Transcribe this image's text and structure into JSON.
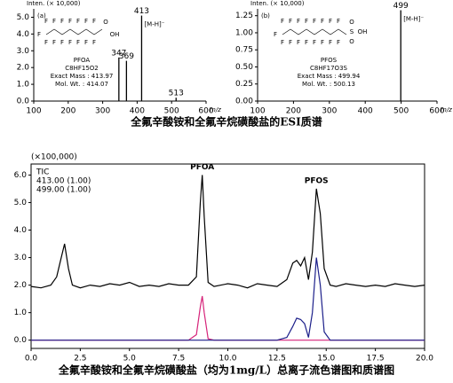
{
  "chart_data": [
    {
      "type": "stem",
      "label": "(a)",
      "ylabel": "Inten. (× 10,000)",
      "xlabel": "m/z",
      "x": [
        347,
        369,
        413,
        513
      ],
      "values": [
        2.6,
        2.4,
        5.1,
        0.2
      ],
      "color": "#000000",
      "label_color": "#2b3a9a",
      "annotation": "[M-H]⁻",
      "compound": "PFOA",
      "formula": "C8HF15O2",
      "exact_mass": "Exact Mass : 413.97",
      "mol_wt": "Mol. Wt. : 414.07",
      "structure": [
        "F",
        "F",
        "F",
        "F",
        "F",
        "F",
        "F",
        "F",
        "F",
        "F",
        "F",
        "F",
        "F",
        "F",
        "F",
        "O",
        "OH"
      ],
      "xlim": [
        100,
        600
      ],
      "xticks": [
        100,
        200,
        300,
        400,
        500,
        600
      ],
      "ylim": [
        0,
        5.5
      ],
      "yticks": [
        {
          "value": 0,
          "label": "0.0"
        },
        {
          "value": 1,
          "label": "1.0"
        },
        {
          "value": 2,
          "label": "2.0"
        },
        {
          "value": 3,
          "label": "3.0"
        },
        {
          "value": 4,
          "label": "4.0"
        },
        {
          "value": 5,
          "label": "5.0"
        }
      ]
    },
    {
      "type": "stem",
      "label": "(b)",
      "ylabel": "Inten. (× 10,000)",
      "xlabel": "m/z",
      "x": [
        499
      ],
      "values": [
        1.33
      ],
      "color": "#000000",
      "label_color": "#2b3a9a",
      "annotation": "[M-H]⁻",
      "compound": "PFOS",
      "formula": "C8HF17O3S",
      "exact_mass": "Exact Mass : 499.94",
      "mol_wt": "Mol. Wt. : 500.13",
      "structure": [
        "F",
        "F",
        "F",
        "F",
        "F",
        "F",
        "F",
        "F",
        "F",
        "F",
        "F",
        "F",
        "F",
        "F",
        "F",
        "F",
        "F",
        "S",
        "O",
        "O",
        "OH"
      ],
      "xlim": [
        100,
        600
      ],
      "xticks": [
        100,
        200,
        300,
        400,
        500,
        600
      ],
      "ylim": [
        0,
        1.35
      ],
      "yticks": [
        {
          "value": 0,
          "label": "0.00"
        },
        {
          "value": 0.25,
          "label": "0.25"
        },
        {
          "value": 0.5,
          "label": "0.50"
        },
        {
          "value": 0.75,
          "label": "0.75"
        },
        {
          "value": 1,
          "label": "1.00"
        },
        {
          "value": 1.25,
          "label": "1.25"
        }
      ]
    },
    {
      "type": "line",
      "ylabel": "(×100,000)",
      "x": [
        0,
        0.5,
        1,
        1.3,
        1.5,
        1.7,
        1.9,
        2.1,
        2.5,
        3,
        3.5,
        4,
        4.5,
        5,
        5.5,
        6,
        6.5,
        7,
        7.5,
        8,
        8.4,
        8.6,
        8.7,
        8.8,
        9.0,
        9.3,
        10,
        10.5,
        11,
        11.5,
        12,
        12.5,
        13,
        13.3,
        13.5,
        13.7,
        13.9,
        14.1,
        14.3,
        14.5,
        14.7,
        14.9,
        15.2,
        15.5,
        16,
        16.5,
        17,
        17.5,
        18,
        18.5,
        19,
        19.5,
        20
      ],
      "series": [
        {
          "name": "TIC",
          "color": "#000000",
          "values": [
            1.95,
            1.9,
            2.0,
            2.3,
            2.9,
            3.5,
            2.6,
            2.0,
            1.9,
            2.0,
            1.95,
            2.05,
            2.0,
            2.1,
            1.95,
            2.0,
            1.95,
            2.05,
            2.0,
            2.0,
            2.3,
            5.0,
            6.0,
            4.5,
            2.1,
            1.95,
            2.05,
            2.0,
            1.9,
            2.05,
            2.0,
            1.95,
            2.2,
            2.8,
            2.9,
            2.7,
            3.0,
            2.2,
            3.2,
            5.5,
            4.6,
            2.6,
            2.0,
            1.95,
            2.05,
            2.0,
            1.95,
            2.0,
            1.95,
            2.05,
            2.0,
            1.95,
            2.0
          ]
        },
        {
          "name": "413.00 (1.00)",
          "color": "#d6247a",
          "values": [
            0,
            0,
            0,
            0,
            0,
            0,
            0,
            0,
            0,
            0,
            0,
            0,
            0,
            0,
            0,
            0,
            0,
            0,
            0,
            0,
            0.2,
            1.2,
            1.6,
            1.0,
            0.05,
            0,
            0,
            0,
            0,
            0,
            0,
            0,
            0,
            0,
            0,
            0,
            0,
            0,
            0,
            0,
            0,
            0,
            0,
            0,
            0,
            0,
            0,
            0,
            0,
            0,
            0,
            0,
            0
          ]
        },
        {
          "name": "499.00 (1.00)",
          "color": "#1c1f8a",
          "values": [
            0,
            0,
            0,
            0,
            0,
            0,
            0,
            0,
            0,
            0,
            0,
            0,
            0,
            0,
            0,
            0,
            0,
            0,
            0,
            0,
            0,
            0,
            0,
            0,
            0,
            0,
            0,
            0,
            0,
            0,
            0,
            0,
            0.1,
            0.5,
            0.8,
            0.75,
            0.6,
            0.1,
            1.0,
            3.0,
            2.0,
            0.3,
            0,
            0,
            0,
            0,
            0,
            0,
            0,
            0,
            0,
            0,
            0
          ]
        }
      ],
      "annotations": [
        "PFOA",
        "PFOS"
      ],
      "xlim": [
        0,
        20
      ],
      "xticks": [
        {
          "value": 0,
          "label": "0.0"
        },
        {
          "value": 2.5,
          "label": "2.5"
        },
        {
          "value": 5,
          "label": "5.0"
        },
        {
          "value": 7.5,
          "label": "7.5"
        },
        {
          "value": 10,
          "label": "10.0"
        },
        {
          "value": 12.5,
          "label": "12.5"
        },
        {
          "value": 15,
          "label": "15.0"
        },
        {
          "value": 17.5,
          "label": "17.5"
        },
        {
          "value": 20,
          "label": "20.0"
        }
      ],
      "ylim": [
        -0.3,
        6.4
      ],
      "yticks": [
        {
          "value": 0,
          "label": "0.0"
        },
        {
          "value": 1,
          "label": "1.0"
        },
        {
          "value": 2,
          "label": "2.0"
        },
        {
          "value": 3,
          "label": "3.0"
        },
        {
          "value": 4,
          "label": "4.0"
        },
        {
          "value": 5,
          "label": "5.0"
        },
        {
          "value": 6,
          "label": "6.0"
        }
      ]
    }
  ],
  "captions": [
    "全氟辛酸铵和全氟辛烷磺酸盐的ESI质谱",
    "全氟辛酸铵和全氟辛烷磺酸盐（均为1mg/L）总离子流色谱图和质谱图"
  ]
}
